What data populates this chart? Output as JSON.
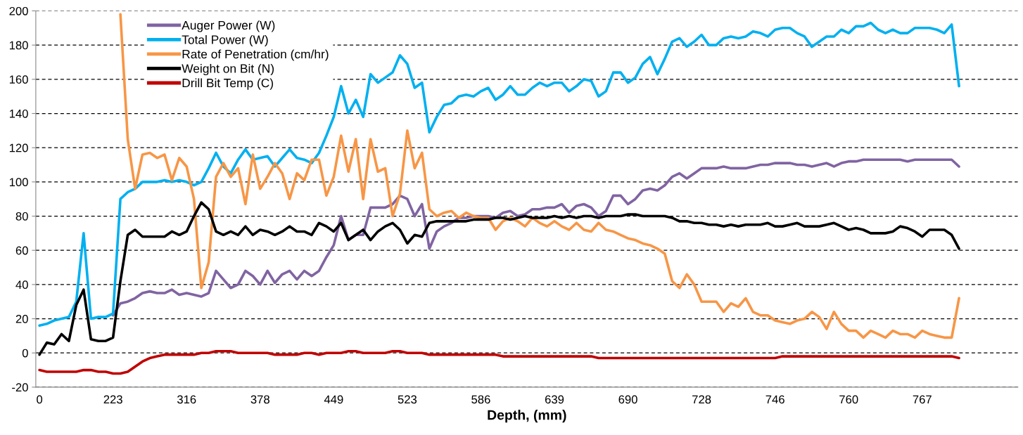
{
  "chart_data": {
    "type": "line",
    "xlabel": "Depth, (mm)",
    "categories": [
      "0",
      null,
      null,
      null,
      null,
      null,
      null,
      null,
      null,
      null,
      "223",
      null,
      null,
      null,
      null,
      null,
      null,
      null,
      null,
      null,
      "316",
      null,
      null,
      null,
      null,
      null,
      null,
      null,
      null,
      null,
      "378",
      null,
      null,
      null,
      null,
      null,
      null,
      null,
      null,
      null,
      "449",
      null,
      null,
      null,
      null,
      null,
      null,
      null,
      null,
      null,
      "523",
      null,
      null,
      null,
      null,
      null,
      null,
      null,
      null,
      null,
      "586",
      null,
      null,
      null,
      null,
      null,
      null,
      null,
      null,
      null,
      "639",
      null,
      null,
      null,
      null,
      null,
      null,
      null,
      null,
      null,
      "690",
      null,
      null,
      null,
      null,
      null,
      null,
      null,
      null,
      null,
      "728",
      null,
      null,
      null,
      null,
      null,
      null,
      null,
      null,
      null,
      "746",
      null,
      null,
      null,
      null,
      null,
      null,
      null,
      null,
      null,
      "760",
      null,
      null,
      null,
      null,
      null,
      null,
      null,
      null,
      null,
      "767",
      null,
      null,
      null,
      null,
      null
    ],
    "ylim": [
      -20,
      200
    ],
    "yticks": [
      -20,
      0,
      20,
      40,
      60,
      80,
      100,
      120,
      140,
      160,
      180,
      200
    ],
    "grid": "y",
    "legend": "top left",
    "marker": "none",
    "line_style": "solid",
    "series": [
      {
        "name": "Auger Power (W)",
        "color": "#8064a2",
        "values": [
          null,
          null,
          null,
          null,
          null,
          null,
          null,
          null,
          null,
          null,
          22,
          29,
          30,
          32,
          35,
          36,
          35,
          35,
          37,
          34,
          35,
          34,
          33,
          35,
          48,
          43,
          38,
          40,
          48,
          45,
          40,
          48,
          41,
          46,
          48,
          43,
          48,
          45,
          48,
          56,
          63,
          80,
          66,
          69,
          69,
          85,
          85,
          85,
          87,
          92,
          90,
          80,
          87,
          61,
          71,
          74,
          76,
          79,
          79,
          80,
          80,
          80,
          79,
          82,
          83,
          80,
          81,
          84,
          84,
          85,
          85,
          87,
          82,
          86,
          87,
          85,
          80,
          83,
          92,
          92,
          87,
          90,
          95,
          96,
          95,
          98,
          103,
          105,
          102,
          105,
          108,
          108,
          108,
          109,
          108,
          108,
          108,
          109,
          110,
          110,
          111,
          111,
          111,
          110,
          110,
          109,
          110,
          111,
          109,
          111,
          112,
          112,
          113,
          113,
          113,
          113,
          113,
          113,
          112,
          113,
          113,
          113,
          113,
          113,
          113,
          109
        ]
      },
      {
        "name": "Total Power (W)",
        "color": "#00b0f0",
        "values": [
          16,
          17,
          19,
          20,
          21,
          30,
          70,
          20,
          21,
          21,
          23,
          90,
          94,
          96,
          100,
          100,
          100,
          101,
          100,
          101,
          100,
          98,
          100,
          108,
          117,
          109,
          105,
          113,
          119,
          113,
          114,
          115,
          109,
          114,
          119,
          114,
          113,
          111,
          117,
          127,
          138,
          156,
          140,
          148,
          138,
          163,
          158,
          161,
          164,
          174,
          169,
          155,
          158,
          129,
          138,
          145,
          146,
          150,
          151,
          150,
          153,
          155,
          148,
          151,
          156,
          151,
          151,
          155,
          158,
          156,
          158,
          158,
          153,
          156,
          160,
          159,
          150,
          153,
          164,
          164,
          158,
          161,
          169,
          173,
          163,
          172,
          182,
          184,
          179,
          182,
          186,
          180,
          180,
          184,
          185,
          184,
          185,
          188,
          187,
          185,
          189,
          190,
          190,
          187,
          185,
          179,
          182,
          185,
          185,
          189,
          187,
          191,
          191,
          193,
          189,
          187,
          189,
          187,
          187,
          190,
          190,
          190,
          189,
          187,
          192,
          156
        ]
      },
      {
        "name": "Rate of Penetration (cm/hr)",
        "color": "#f79646",
        "values": [
          null,
          null,
          null,
          null,
          null,
          null,
          null,
          null,
          null,
          null,
          null,
          198,
          125,
          96,
          116,
          117,
          114,
          116,
          101,
          114,
          109,
          90,
          38,
          53,
          103,
          111,
          103,
          108,
          87,
          116,
          96,
          103,
          111,
          105,
          90,
          105,
          101,
          113,
          113,
          92,
          103,
          127,
          106,
          125,
          90,
          125,
          106,
          108,
          80,
          93,
          130,
          108,
          117,
          84,
          80,
          82,
          83,
          79,
          82,
          80,
          79,
          79,
          72,
          77,
          79,
          77,
          74,
          79,
          76,
          74,
          77,
          74,
          72,
          76,
          72,
          71,
          76,
          72,
          71,
          69,
          67,
          66,
          64,
          63,
          61,
          58,
          42,
          38,
          46,
          40,
          30,
          30,
          30,
          24,
          29,
          27,
          32,
          24,
          22,
          22,
          19,
          18,
          17,
          19,
          20,
          24,
          21,
          14,
          24,
          17,
          13,
          13,
          9,
          13,
          11,
          9,
          13,
          11,
          11,
          9,
          13,
          11,
          10,
          9,
          9,
          32
        ]
      },
      {
        "name": "Weight on Bit (N)",
        "color": "#000000",
        "values": [
          -1,
          6,
          5,
          11,
          7,
          28,
          37,
          8,
          7,
          7,
          9,
          42,
          69,
          72,
          68,
          68,
          68,
          68,
          71,
          69,
          71,
          80,
          88,
          84,
          71,
          69,
          71,
          69,
          74,
          69,
          72,
          71,
          69,
          71,
          74,
          71,
          71,
          69,
          76,
          74,
          71,
          76,
          66,
          69,
          72,
          66,
          71,
          74,
          76,
          72,
          64,
          69,
          68,
          76,
          77,
          77,
          77,
          77,
          77,
          78,
          78,
          78,
          79,
          79,
          78,
          79,
          80,
          79,
          79,
          79,
          80,
          79,
          80,
          79,
          80,
          80,
          79,
          80,
          80,
          80,
          81,
          81,
          80,
          80,
          80,
          80,
          79,
          77,
          77,
          76,
          76,
          75,
          75,
          74,
          75,
          74,
          75,
          75,
          75,
          76,
          74,
          74,
          75,
          76,
          74,
          74,
          74,
          75,
          76,
          74,
          72,
          73,
          72,
          70,
          70,
          70,
          71,
          74,
          73,
          71,
          68,
          72,
          72,
          72,
          69,
          61
        ]
      },
      {
        "name": "Drill Bit Temp (C)",
        "color": "#c00000",
        "values": [
          -10,
          -11,
          -11,
          -11,
          -11,
          -11,
          -10,
          -10,
          -11,
          -11,
          -12,
          -12,
          -11,
          -8,
          -5,
          -3,
          -2,
          -1,
          -1,
          -1,
          -1,
          -1,
          0,
          0,
          1,
          1,
          1,
          0,
          0,
          0,
          0,
          0,
          -1,
          -1,
          -1,
          -1,
          0,
          0,
          -1,
          0,
          0,
          0,
          1,
          1,
          0,
          0,
          0,
          0,
          1,
          1,
          0,
          0,
          0,
          -1,
          -1,
          -1,
          -1,
          -1,
          -1,
          -1,
          -1,
          -1,
          -1,
          -2,
          -2,
          -2,
          -2,
          -2,
          -2,
          -2,
          -2,
          -2,
          -2,
          -2,
          -2,
          -2,
          -3,
          -3,
          -3,
          -3,
          -3,
          -3,
          -3,
          -3,
          -3,
          -3,
          -3,
          -3,
          -3,
          -3,
          -3,
          -3,
          -3,
          -3,
          -3,
          -3,
          -3,
          -3,
          -3,
          -3,
          -3,
          -2,
          -2,
          -2,
          -2,
          -2,
          -2,
          -2,
          -2,
          -2,
          -2,
          -2,
          -2,
          -2,
          -2,
          -2,
          -2,
          -2,
          -2,
          -2,
          -2,
          -2,
          -2,
          -2,
          -2,
          -3
        ]
      }
    ]
  }
}
